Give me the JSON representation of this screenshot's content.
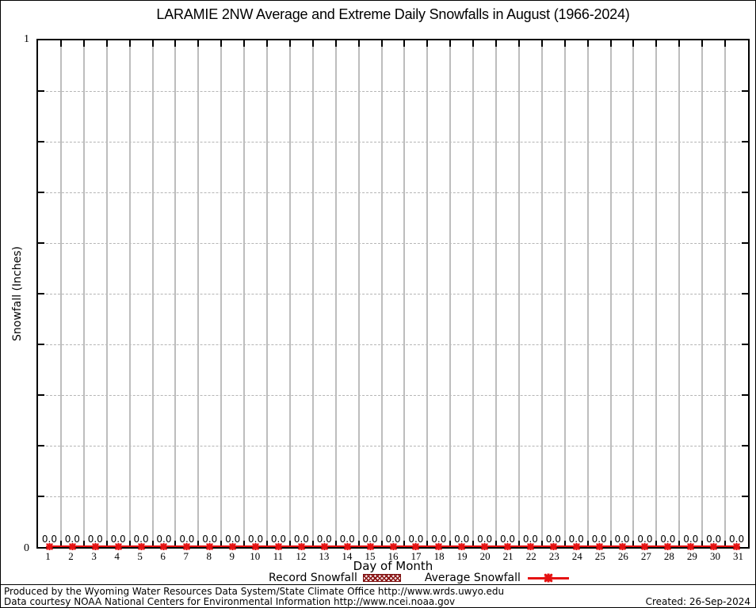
{
  "colors": {
    "series_red": "#e51212",
    "record_hatch_dark_red": "#8b1414",
    "grid_gray": "#bdbdbd",
    "axis_black": "#000000"
  },
  "legend": {
    "record_label": "Record Snowfall",
    "average_label": "Average Snowfall"
  },
  "footer": {
    "line1": "Produced by the Wyoming Water Resources Data System/State Climate Office http://www.wrds.uwyo.edu",
    "line2": "Data courtesy NOAA National Centers for Environmental Information http://www.ncei.noaa.gov",
    "created": "Created: 26-Sep-2024"
  },
  "chart_data": {
    "type": "bar",
    "title": "LARAMIE 2NW Average and Extreme Daily Snowfalls in August (1966-2024)",
    "xlabel": "Day of Month",
    "ylabel": "Snowfall (Inches)",
    "x": [
      1,
      2,
      3,
      4,
      5,
      6,
      7,
      8,
      9,
      10,
      11,
      12,
      13,
      14,
      15,
      16,
      17,
      18,
      19,
      20,
      21,
      22,
      23,
      24,
      25,
      26,
      27,
      28,
      29,
      30,
      31
    ],
    "series": [
      {
        "name": "Record Snowfall",
        "style": "hatched-bar",
        "values": [
          0,
          0,
          0,
          0,
          0,
          0,
          0,
          0,
          0,
          0,
          0,
          0,
          0,
          0,
          0,
          0,
          0,
          0,
          0,
          0,
          0,
          0,
          0,
          0,
          0,
          0,
          0,
          0,
          0,
          0,
          0
        ]
      },
      {
        "name": "Average Snowfall",
        "style": "line-with-star-marker",
        "values": [
          0,
          0,
          0,
          0,
          0,
          0,
          0,
          0,
          0,
          0,
          0,
          0,
          0,
          0,
          0,
          0,
          0,
          0,
          0,
          0,
          0,
          0,
          0,
          0,
          0,
          0,
          0,
          0,
          0,
          0,
          0
        ]
      }
    ],
    "point_labels": [
      "0.0",
      "0.0",
      "0.0",
      "0.0",
      "0.0",
      "0.0",
      "0.0",
      "0.0",
      "0.0",
      "0.0",
      "0.0",
      "0.0",
      "0.0",
      "0.0",
      "0.0",
      "0.0",
      "0.0",
      "0.0",
      "0.0",
      "0.0",
      "0.0",
      "0.0",
      "0.0",
      "0.0",
      "0.0",
      "0.0",
      "0.0",
      "0.0",
      "0.0",
      "0.0",
      "0.0"
    ],
    "ylim": [
      0,
      1
    ],
    "ygrid_step": 0.1,
    "ytick_labels": {
      "min": "0",
      "max": "1"
    },
    "grid": true,
    "legend_position": "bottom-center"
  }
}
